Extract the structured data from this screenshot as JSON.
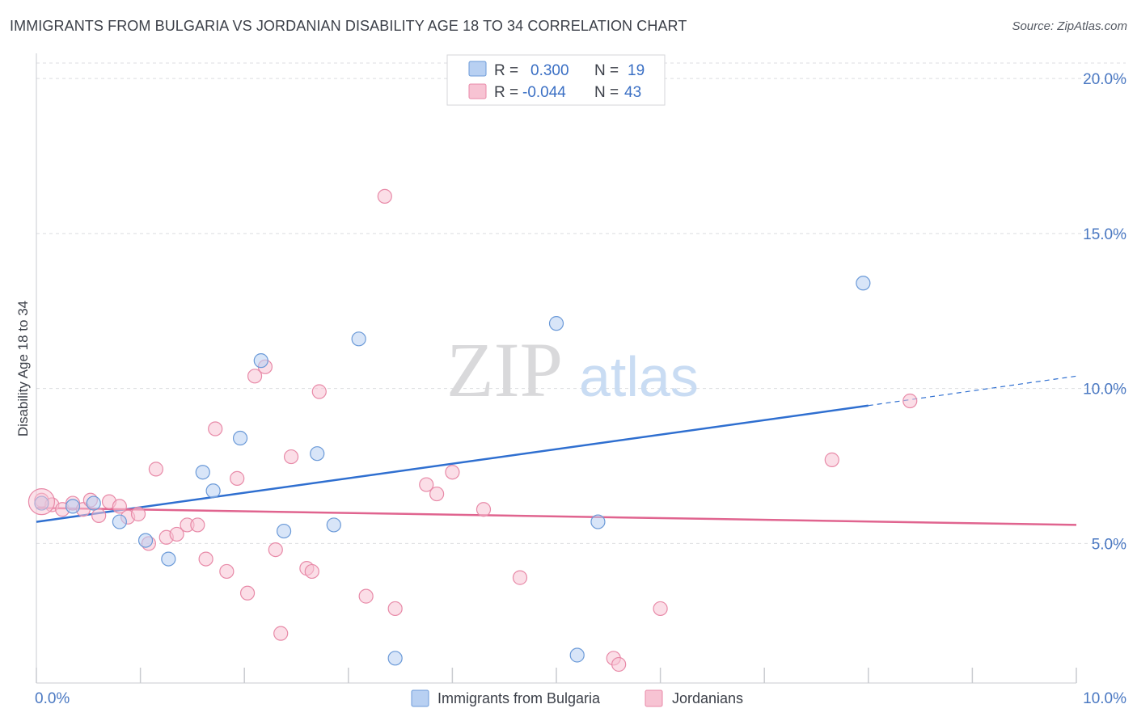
{
  "title": "IMMIGRANTS FROM BULGARIA VS JORDANIAN DISABILITY AGE 18 TO 34 CORRELATION CHART",
  "source": "Source: ZipAtlas.com",
  "watermark": {
    "zip": "ZIP",
    "atlas": "atlas"
  },
  "colors": {
    "blue_fill": "#b8d0f2",
    "blue_stroke": "#6b9ad8",
    "blue_line": "#2f6fd0",
    "pink_fill": "#f7c3d3",
    "pink_stroke": "#e88aa8",
    "pink_line": "#e0648f",
    "grid": "#dcdde0",
    "axis": "#c9cbd0"
  },
  "legend": {
    "rows": [
      {
        "r_label": "R =",
        "r_value": "0.300",
        "n_label": "N =",
        "n_value": "19"
      },
      {
        "r_label": "R =",
        "r_value": "-0.044",
        "n_label": "N =",
        "n_value": "43"
      }
    ]
  },
  "chart_data": {
    "type": "scatter",
    "xlabel": "",
    "ylabel": "Disability Age 18 to 34",
    "xlim": [
      0,
      10
    ],
    "ylim": [
      0.5,
      20.5
    ],
    "x_tick_labels": [
      "0.0%",
      "10.0%"
    ],
    "y_ticks": [
      5,
      10,
      15,
      20
    ],
    "y_tick_labels": [
      "5.0%",
      "10.0%",
      "15.0%",
      "20.0%"
    ],
    "grid": true,
    "legend_position": "top-center",
    "series": [
      {
        "name": "Immigrants from Bulgaria",
        "color": "#b8d0f2",
        "points": [
          [
            0.05,
            6.3
          ],
          [
            0.35,
            6.2
          ],
          [
            0.55,
            6.3
          ],
          [
            0.8,
            5.7
          ],
          [
            1.05,
            5.1
          ],
          [
            1.27,
            4.5
          ],
          [
            1.6,
            7.3
          ],
          [
            1.7,
            6.7
          ],
          [
            1.96,
            8.4
          ],
          [
            2.16,
            10.9
          ],
          [
            2.38,
            5.4
          ],
          [
            2.7,
            7.9
          ],
          [
            2.86,
            5.6
          ],
          [
            3.1,
            11.6
          ],
          [
            3.45,
            1.3
          ],
          [
            5.0,
            12.1
          ],
          [
            5.2,
            1.4
          ],
          [
            5.4,
            5.7
          ],
          [
            7.95,
            13.4
          ]
        ],
        "trend": {
          "x": [
            0.0,
            8.0
          ],
          "y": [
            5.7,
            9.45
          ],
          "dashed_to": [
            10.0,
            10.4
          ]
        }
      },
      {
        "name": "Jordanians",
        "color": "#f7c3d3",
        "points": [
          [
            0.05,
            6.4
          ],
          [
            0.15,
            6.25
          ],
          [
            0.25,
            6.1
          ],
          [
            0.35,
            6.3
          ],
          [
            0.45,
            6.1
          ],
          [
            0.52,
            6.4
          ],
          [
            0.6,
            5.9
          ],
          [
            0.7,
            6.35
          ],
          [
            0.8,
            6.2
          ],
          [
            0.88,
            5.85
          ],
          [
            0.98,
            5.95
          ],
          [
            1.08,
            5.0
          ],
          [
            1.15,
            7.4
          ],
          [
            1.25,
            5.2
          ],
          [
            1.35,
            5.3
          ],
          [
            1.45,
            5.6
          ],
          [
            1.55,
            5.6
          ],
          [
            1.63,
            4.5
          ],
          [
            1.72,
            8.7
          ],
          [
            1.83,
            4.1
          ],
          [
            1.93,
            7.1
          ],
          [
            2.03,
            3.4
          ],
          [
            2.1,
            10.4
          ],
          [
            2.2,
            10.7
          ],
          [
            2.3,
            4.8
          ],
          [
            2.35,
            2.1
          ],
          [
            2.45,
            7.8
          ],
          [
            2.6,
            4.2
          ],
          [
            2.65,
            4.1
          ],
          [
            2.72,
            9.9
          ],
          [
            3.17,
            3.3
          ],
          [
            3.35,
            16.2
          ],
          [
            3.45,
            2.9
          ],
          [
            3.75,
            6.9
          ],
          [
            3.85,
            6.6
          ],
          [
            4.0,
            7.3
          ],
          [
            4.3,
            6.1
          ],
          [
            4.65,
            3.9
          ],
          [
            5.55,
            1.3
          ],
          [
            5.6,
            1.1
          ],
          [
            6.0,
            2.9
          ],
          [
            7.65,
            7.7
          ],
          [
            8.4,
            9.6
          ]
        ],
        "trend": {
          "x": [
            0.0,
            10.0
          ],
          "y": [
            6.15,
            5.6
          ]
        }
      }
    ]
  }
}
